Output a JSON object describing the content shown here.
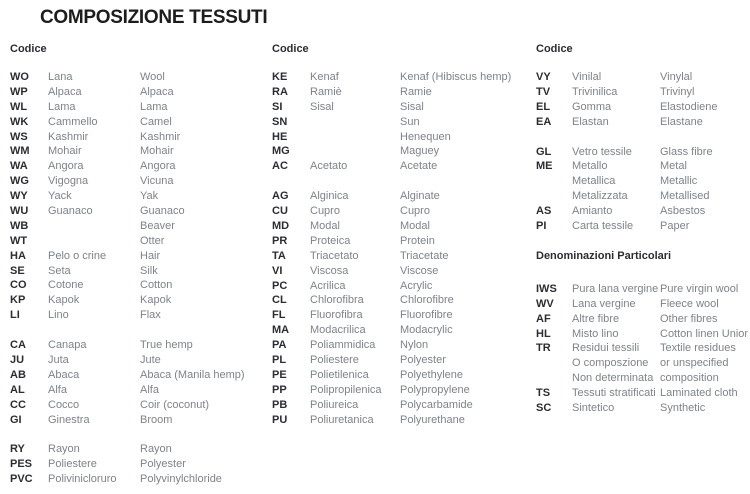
{
  "page": {
    "title": "COMPOSIZIONE TESSUTI"
  },
  "colors": {
    "background": "#ffffff",
    "title_text": "#1d1d1b",
    "code_text": "#2b2d33",
    "name_text": "#7e838a"
  },
  "columns": [
    {
      "header": "Codice",
      "groups": [
        {
          "rows": [
            {
              "code": "WO",
              "it": "Lana",
              "en": "Wool"
            },
            {
              "code": "WP",
              "it": "Alpaca",
              "en": "Alpaca"
            },
            {
              "code": "WL",
              "it": "Lama",
              "en": "Lama"
            },
            {
              "code": "WK",
              "it": "Cammello",
              "en": "Camel"
            },
            {
              "code": "WS",
              "it": "Kashmir",
              "en": "Kashmir"
            },
            {
              "code": "WM",
              "it": "Mohair",
              "en": "Mohair"
            },
            {
              "code": "WA",
              "it": "Angora",
              "en": "Angora"
            },
            {
              "code": "WG",
              "it": "Vigogna",
              "en": "Vicuna"
            },
            {
              "code": "WY",
              "it": "Yack",
              "en": "Yak"
            },
            {
              "code": "WU",
              "it": "Guanaco",
              "en": "Guanaco"
            },
            {
              "code": "WB",
              "it": "",
              "en": "Beaver"
            },
            {
              "code": "WT",
              "it": "",
              "en": "Otter"
            },
            {
              "code": "HA",
              "it": "Pelo o crine",
              "en": "Hair"
            },
            {
              "code": "SE",
              "it": "Seta",
              "en": "Silk"
            },
            {
              "code": "CO",
              "it": "Cotone",
              "en": "Cotton"
            },
            {
              "code": "KP",
              "it": "Kapok",
              "en": "Kapok"
            },
            {
              "code": "LI",
              "it": "Lino",
              "en": "Flax"
            }
          ]
        },
        {
          "rows": [
            {
              "code": "CA",
              "it": "Canapa",
              "en": "True hemp"
            },
            {
              "code": "JU",
              "it": "Juta",
              "en": "Jute"
            },
            {
              "code": "AB",
              "it": "Abaca",
              "en": "Abaca (Manila hemp)"
            },
            {
              "code": "AL",
              "it": "Alfa",
              "en": "Alfa"
            },
            {
              "code": "CC",
              "it": "Cocco",
              "en": "Coir (coconut)"
            },
            {
              "code": "GI",
              "it": "Ginestra",
              "en": "Broom"
            }
          ]
        },
        {
          "rows": [
            {
              "code": "RY",
              "it": "Rayon",
              "en": "Rayon"
            },
            {
              "code": "PES",
              "it": "Poliestere",
              "en": "Polyester"
            },
            {
              "code": "PVC",
              "it": "Polivinicloruro",
              "en": "Polyvinylchloride"
            }
          ]
        }
      ]
    },
    {
      "header": "Codice",
      "groups": [
        {
          "rows": [
            {
              "code": "KE",
              "it": "Kenaf",
              "en": "Kenaf (Hibiscus hemp)"
            },
            {
              "code": "RA",
              "it": "Ramiè",
              "en": "Ramie"
            },
            {
              "code": "SI",
              "it": "Sisal",
              "en": "Sisal"
            },
            {
              "code": "SN",
              "it": "",
              "en": "Sun"
            },
            {
              "code": "HE",
              "it": "",
              "en": "Henequen"
            },
            {
              "code": "MG",
              "it": "",
              "en": "Maguey"
            },
            {
              "code": "AC",
              "it": "Acetato",
              "en": "Acetate"
            }
          ]
        },
        {
          "rows": [
            {
              "code": "AG",
              "it": "Alginica",
              "en": "Alginate"
            },
            {
              "code": "CU",
              "it": "Cupro",
              "en": "Cupro"
            },
            {
              "code": "MD",
              "it": "Modal",
              "en": "Modal"
            },
            {
              "code": "PR",
              "it": "Proteica",
              "en": "Protein"
            },
            {
              "code": "TA",
              "it": "Triacetato",
              "en": "Triacetate"
            },
            {
              "code": "VI",
              "it": "Viscosa",
              "en": "Viscose"
            },
            {
              "code": "PC",
              "it": "Acrilica",
              "en": "Acrylic"
            },
            {
              "code": "CL",
              "it": "Chlorofibra",
              "en": "Chlorofibre"
            },
            {
              "code": "FL",
              "it": "Fluorofibra",
              "en": "Fluorofibre"
            },
            {
              "code": "MA",
              "it": "Modacrilica",
              "en": "Modacrylic"
            },
            {
              "code": "PA",
              "it": "Poliammidica",
              "en": "Nylon"
            },
            {
              "code": "PL",
              "it": "Poliestere",
              "en": "Polyester"
            },
            {
              "code": "PE",
              "it": "Polietilenica",
              "en": "Polyethylene"
            },
            {
              "code": "PP",
              "it": "Polipropilenica",
              "en": "Polypropylene"
            },
            {
              "code": "PB",
              "it": "Poliureica",
              "en": "Polycarbamide"
            },
            {
              "code": "PU",
              "it": "Poliuretanica",
              "en": "Polyurethane"
            }
          ]
        }
      ]
    },
    {
      "header": "Codice",
      "groups": [
        {
          "rows": [
            {
              "code": "VY",
              "it": "Vinilal",
              "en": "Vinylal"
            },
            {
              "code": "TV",
              "it": "Trivinilica",
              "en": "Trivinyl"
            },
            {
              "code": "EL",
              "it": "Gomma",
              "en": "Elastodiene"
            },
            {
              "code": "EA",
              "it": "Elastan",
              "en": "Elastane"
            }
          ]
        },
        {
          "rows": [
            {
              "code": "GL",
              "it": "Vetro tessile",
              "en": "Glass fibre"
            },
            {
              "code": "ME",
              "it": "Metallo",
              "en": "Metal"
            },
            {
              "code": "",
              "it": "Metallica",
              "en": "Metallic"
            },
            {
              "code": "",
              "it": "Metalizzata",
              "en": "Metallised"
            },
            {
              "code": "AS",
              "it": "Amianto",
              "en": "Asbestos"
            },
            {
              "code": "PI",
              "it": "Carta tessile",
              "en": "Paper"
            }
          ]
        },
        {
          "heading": "Denominazioni Particolari",
          "rows": [
            {
              "code": "IWS",
              "it": "Pura lana vergine",
              "en": "Pure virgin wool"
            },
            {
              "code": "WV",
              "it": "Lana vergine",
              "en": "Fleece wool"
            },
            {
              "code": "AF",
              "it": "Altre fibre",
              "en": "Other fibres"
            },
            {
              "code": "HL",
              "it": "Misto lino",
              "en": "Cotton linen Union"
            },
            {
              "code": "TR",
              "it": "Residui tessili",
              "en": "Textile residues"
            },
            {
              "code": "",
              "it": "O composzione",
              "en": "or unspecified"
            },
            {
              "code": "",
              "it": "Non determinata",
              "en": "composition"
            },
            {
              "code": "TS",
              "it": "Tessuti stratificati",
              "en": "Laminated cloth"
            },
            {
              "code": "SC",
              "it": "Sintetico",
              "en": "Synthetic"
            }
          ]
        }
      ]
    }
  ]
}
